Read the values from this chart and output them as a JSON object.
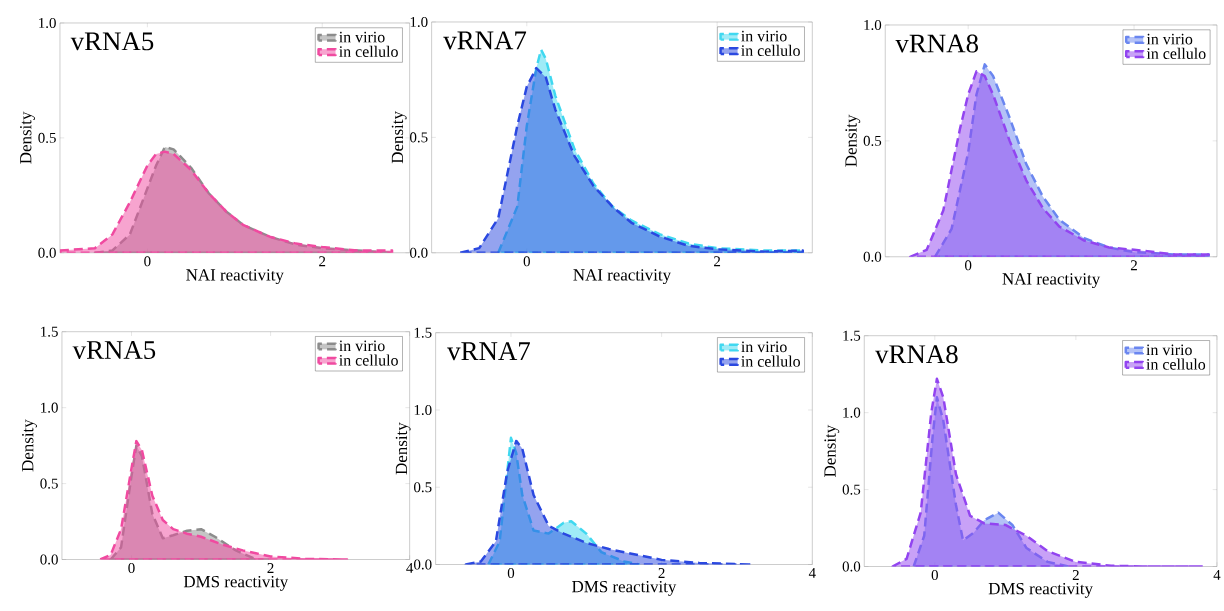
{
  "chart_data": [
    {
      "type": "area",
      "title": "vRNA5",
      "xlabel": "NAI reactivity",
      "ylabel": "Density",
      "xlim": [
        -1,
        3
      ],
      "xticks": [
        0,
        2
      ],
      "ylim": [
        0,
        1
      ],
      "yticks": [
        {
          "value": 0,
          "label": "0.0"
        },
        {
          "value": 0.5,
          "label": "0.5"
        },
        {
          "value": 1,
          "label": "1.0"
        }
      ],
      "legend": "top right",
      "line_style": "dashed",
      "series": [
        {
          "name": "in virio",
          "color": "#8c8c8c",
          "x": [
            -0.6,
            -0.4,
            -0.2,
            0,
            0.1,
            0.2,
            0.3,
            0.5,
            0.7,
            0.9,
            1.1,
            1.4,
            1.7,
            2.0,
            2.4,
            2.8
          ],
          "values": [
            0,
            0.01,
            0.08,
            0.28,
            0.38,
            0.46,
            0.45,
            0.37,
            0.26,
            0.18,
            0.12,
            0.07,
            0.035,
            0.02,
            0.01,
            0
          ]
        },
        {
          "name": "in cellulo",
          "color": "#f04aa0",
          "x": [
            -1,
            -0.6,
            -0.4,
            -0.2,
            0,
            0.1,
            0.2,
            0.3,
            0.5,
            0.7,
            0.9,
            1.1,
            1.4,
            1.7,
            2.0,
            2.4,
            2.8
          ],
          "values": [
            0.01,
            0.02,
            0.08,
            0.22,
            0.38,
            0.43,
            0.44,
            0.43,
            0.36,
            0.26,
            0.18,
            0.12,
            0.07,
            0.04,
            0.025,
            0.01,
            0.01
          ]
        }
      ]
    },
    {
      "type": "area",
      "title": "vRNA7",
      "xlabel": "NAI reactivity",
      "ylabel": "Density",
      "xlim": [
        -1,
        3
      ],
      "xticks": [
        0,
        2
      ],
      "ylim": [
        0,
        1
      ],
      "yticks": [
        {
          "value": 0,
          "label": "0.0"
        },
        {
          "value": 0.5,
          "label": "0.5"
        },
        {
          "value": 1,
          "label": "1.0"
        }
      ],
      "legend": "top right",
      "line_style": "dashed",
      "series": [
        {
          "name": "in virio",
          "color": "#40d8f0",
          "x": [
            -0.3,
            -0.1,
            0,
            0.1,
            0.15,
            0.2,
            0.3,
            0.5,
            0.7,
            0.9,
            1.1,
            1.4,
            1.7,
            2.0,
            2.5,
            2.9
          ],
          "values": [
            0,
            0.2,
            0.55,
            0.8,
            0.88,
            0.84,
            0.68,
            0.45,
            0.3,
            0.2,
            0.14,
            0.08,
            0.04,
            0.02,
            0.01,
            0.01
          ]
        },
        {
          "name": "in cellulo",
          "color": "#2a48e0",
          "x": [
            -0.7,
            -0.5,
            -0.3,
            -0.1,
            0,
            0.1,
            0.2,
            0.3,
            0.5,
            0.7,
            0.9,
            1.1,
            1.4,
            1.7,
            2.0,
            2.5,
            2.9
          ],
          "values": [
            0,
            0.02,
            0.15,
            0.55,
            0.72,
            0.8,
            0.76,
            0.62,
            0.42,
            0.29,
            0.2,
            0.13,
            0.07,
            0.03,
            0.015,
            0.005,
            0.01
          ]
        }
      ]
    },
    {
      "type": "area",
      "title": "vRNA8",
      "xlabel": "NAI reactivity",
      "ylabel": "Density",
      "xlim": [
        -1,
        3
      ],
      "xticks": [
        0,
        2
      ],
      "ylim": [
        0,
        1
      ],
      "yticks": [
        {
          "value": 0,
          "label": "0.0"
        },
        {
          "value": 0.5,
          "label": "0.5"
        },
        {
          "value": 1,
          "label": "1.0"
        }
      ],
      "legend": "top right",
      "line_style": "dashed",
      "series": [
        {
          "name": "in virio",
          "color": "#6a86f0",
          "x": [
            -0.4,
            -0.2,
            0,
            0.1,
            0.2,
            0.3,
            0.5,
            0.7,
            0.9,
            1.1,
            1.4,
            1.7,
            2.0,
            2.5,
            2.9
          ],
          "values": [
            0,
            0.12,
            0.45,
            0.7,
            0.83,
            0.78,
            0.6,
            0.4,
            0.26,
            0.16,
            0.08,
            0.04,
            0.02,
            0.01,
            0.01
          ]
        },
        {
          "name": "in cellulo",
          "color": "#9244f0",
          "x": [
            -0.7,
            -0.5,
            -0.3,
            -0.1,
            0,
            0.1,
            0.2,
            0.3,
            0.5,
            0.7,
            0.9,
            1.1,
            1.4,
            1.7,
            2.0,
            2.5,
            2.9
          ],
          "values": [
            0,
            0.03,
            0.2,
            0.55,
            0.7,
            0.8,
            0.78,
            0.7,
            0.5,
            0.33,
            0.21,
            0.13,
            0.07,
            0.04,
            0.03,
            0.01,
            0.01
          ]
        }
      ]
    },
    {
      "type": "area",
      "title": "vRNA5",
      "xlabel": "DMS reactivity",
      "ylabel": "Density",
      "xlim": [
        -1,
        4
      ],
      "xticks": [
        0,
        2,
        4
      ],
      "ylim": [
        0,
        1.5
      ],
      "yticks": [
        {
          "value": 0,
          "label": "0.0"
        },
        {
          "value": 0.5,
          "label": "0.5"
        },
        {
          "value": 1,
          "label": "1.0"
        },
        {
          "value": 1.5,
          "label": "1.5"
        }
      ],
      "legend": "top right",
      "line_style": "dashed",
      "series": [
        {
          "name": "in virio",
          "color": "#8c8c8c",
          "x": [
            -0.3,
            -0.15,
            0,
            0.07,
            0.15,
            0.3,
            0.45,
            0.6,
            0.8,
            1.0,
            1.2,
            1.5,
            1.8,
            2.0
          ],
          "values": [
            0,
            0.08,
            0.55,
            0.75,
            0.68,
            0.3,
            0.14,
            0.16,
            0.19,
            0.2,
            0.15,
            0.06,
            0,
            0
          ]
        },
        {
          "name": "in cellulo",
          "color": "#f04aa0",
          "x": [
            -0.45,
            -0.3,
            -0.15,
            0,
            0.07,
            0.15,
            0.3,
            0.45,
            0.6,
            0.8,
            1.0,
            1.3,
            1.6,
            2.0,
            2.5,
            3.1
          ],
          "values": [
            0,
            0.03,
            0.2,
            0.6,
            0.78,
            0.72,
            0.42,
            0.26,
            0.2,
            0.17,
            0.15,
            0.1,
            0.06,
            0.02,
            0.005,
            0
          ]
        }
      ]
    },
    {
      "type": "area",
      "title": "vRNA7",
      "xlabel": "DMS reactivity",
      "ylabel": "Density",
      "xlim": [
        -1,
        4
      ],
      "xticks": [
        0,
        2,
        4
      ],
      "ylim": [
        0,
        1.5
      ],
      "yticks": [
        {
          "value": 0,
          "label": "0.0"
        },
        {
          "value": 0.5,
          "label": "0.5"
        },
        {
          "value": 1,
          "label": "1.0"
        },
        {
          "value": 1.5,
          "label": "1.5"
        }
      ],
      "legend": "top right",
      "line_style": "dashed",
      "series": [
        {
          "name": "in virio",
          "color": "#40d8f0",
          "x": [
            -0.3,
            -0.15,
            0,
            0.07,
            0.15,
            0.3,
            0.5,
            0.7,
            0.8,
            1.0,
            1.2,
            1.5,
            1.7
          ],
          "values": [
            0,
            0.15,
            0.82,
            0.72,
            0.45,
            0.22,
            0.2,
            0.27,
            0.28,
            0.2,
            0.08,
            0.02,
            0
          ]
        },
        {
          "name": "in cellulo",
          "color": "#2a48e0",
          "x": [
            -0.6,
            -0.4,
            -0.2,
            -0.05,
            0.07,
            0.15,
            0.3,
            0.5,
            0.7,
            1.0,
            1.3,
            1.6,
            2.0,
            2.5,
            3.2
          ],
          "values": [
            0,
            0.02,
            0.15,
            0.6,
            0.8,
            0.75,
            0.45,
            0.25,
            0.2,
            0.14,
            0.1,
            0.07,
            0.03,
            0.01,
            0
          ]
        }
      ]
    },
    {
      "type": "area",
      "title": "vRNA8",
      "xlabel": "DMS reactivity",
      "ylabel": "Density",
      "xlim": [
        -1,
        4
      ],
      "xticks": [
        0,
        2,
        4
      ],
      "ylim": [
        0,
        1.5
      ],
      "yticks": [
        {
          "value": 0,
          "label": "0.0"
        },
        {
          "value": 0.5,
          "label": "0.5"
        },
        {
          "value": 1,
          "label": "1.0"
        },
        {
          "value": 1.5,
          "label": "1.5"
        }
      ],
      "legend": "top right",
      "line_style": "dashed",
      "series": [
        {
          "name": "in virio",
          "color": "#6a86f0",
          "x": [
            -0.3,
            -0.15,
            -0.03,
            0.03,
            0.12,
            0.3,
            0.4,
            0.55,
            0.7,
            0.9,
            1.1,
            1.3,
            1.6,
            1.9
          ],
          "values": [
            0,
            0.2,
            0.85,
            1.1,
            0.95,
            0.4,
            0.17,
            0.22,
            0.3,
            0.35,
            0.27,
            0.12,
            0.03,
            0
          ]
        },
        {
          "name": "in cellulo",
          "color": "#9244f0",
          "x": [
            -0.6,
            -0.4,
            -0.2,
            -0.05,
            0.03,
            0.12,
            0.3,
            0.5,
            0.7,
            1.0,
            1.3,
            1.6,
            2.0,
            2.5,
            3.0,
            3.8
          ],
          "values": [
            0,
            0.05,
            0.35,
            1.0,
            1.22,
            1.1,
            0.6,
            0.33,
            0.28,
            0.27,
            0.2,
            0.1,
            0.03,
            0.005,
            0,
            0
          ]
        }
      ]
    }
  ]
}
